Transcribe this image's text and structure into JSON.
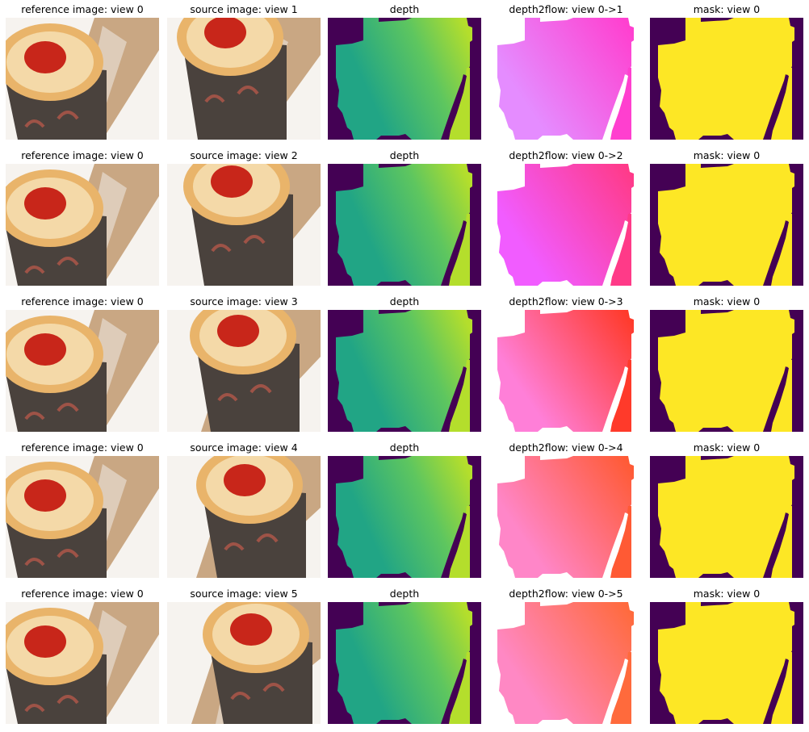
{
  "rows": [
    {
      "titles": [
        "reference image: view 0",
        "source image: view 1",
        "depth",
        "depth2flow: view 0->1",
        "mask: view 0"
      ],
      "flow_colors": [
        "#e58cff",
        "#ff3fcf"
      ]
    },
    {
      "titles": [
        "reference image: view 0",
        "source image: view 2",
        "depth",
        "depth2flow: view 0->2",
        "mask: view 0"
      ],
      "flow_colors": [
        "#f15cff",
        "#ff3a88"
      ]
    },
    {
      "titles": [
        "reference image: view 0",
        "source image: view 3",
        "depth",
        "depth2flow: view 0->3",
        "mask: view 0"
      ],
      "flow_colors": [
        "#ff7fd8",
        "#ff3a2a"
      ]
    },
    {
      "titles": [
        "reference image: view 0",
        "source image: view 4",
        "depth",
        "depth2flow: view 0->4",
        "mask: view 0"
      ],
      "flow_colors": [
        "#ff86c8",
        "#ff5a34"
      ]
    },
    {
      "titles": [
        "reference image: view 0",
        "source image: view 5",
        "depth",
        "depth2flow: view 0->5",
        "mask: view 0"
      ],
      "flow_colors": [
        "#ff88c4",
        "#ff6a3c"
      ]
    }
  ],
  "colors": {
    "background_dark": "#440154",
    "depth_near": "#21a585",
    "depth_far": "#b4de2c",
    "mask_fg": "#fde725"
  }
}
